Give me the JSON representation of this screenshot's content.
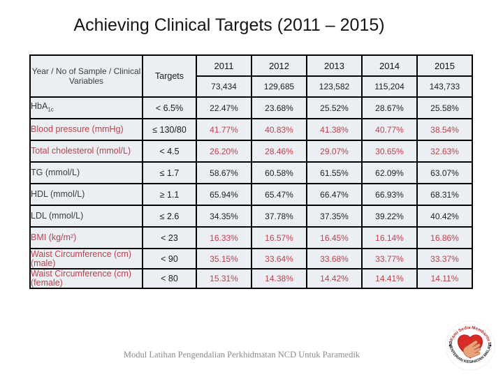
{
  "title": "Achieving Clinical Targets (2011 – 2015)",
  "table": {
    "header": {
      "row_label_line1": "Year / No of Sample / Clinical",
      "row_label_line2": "Variables",
      "targets_label": "Targets",
      "years": [
        "2011",
        "2012",
        "2013",
        "2014",
        "2015"
      ],
      "samples": [
        "73,434",
        "129,685",
        "123,582",
        "115,204",
        "143,733"
      ]
    },
    "rows": [
      {
        "label": "HbA",
        "label_sub": "1c",
        "target": "< 6.5%",
        "color": "black",
        "values": [
          "22.47%",
          "23.68%",
          "25.52%",
          "28.67%",
          "25.58%"
        ]
      },
      {
        "label": "Blood pressure (mmHg)",
        "target": "≤ 130/80",
        "color": "red",
        "values": [
          "41.77%",
          "40.83%",
          "41.38%",
          "40.77%",
          "38.54%"
        ]
      },
      {
        "label": "Total cholesterol (mmol/L)",
        "target": "< 4.5",
        "color": "red",
        "values": [
          "26.20%",
          "28.46%",
          "29.07%",
          "30.65%",
          "32.63%"
        ]
      },
      {
        "label": "TG (mmol/L)",
        "target": "≤ 1.7",
        "color": "black",
        "values": [
          "58.67%",
          "60.58%",
          "61.55%",
          "62.09%",
          "63.07%"
        ]
      },
      {
        "label": "HDL (mmol/L)",
        "target": "≥ 1.1",
        "color": "black",
        "values": [
          "65.94%",
          "65.47%",
          "66.47%",
          "66.93%",
          "68.31%"
        ]
      },
      {
        "label": "LDL (mmol/L)",
        "target": "≤ 2.6",
        "color": "black",
        "values": [
          "34.35%",
          "37.78%",
          "37.35%",
          "39.22%",
          "40.42%"
        ]
      },
      {
        "label": "BMI (kg/m²)",
        "target": "< 23",
        "color": "red",
        "values": [
          "16.33%",
          "16.57%",
          "16.45%",
          "16.14%",
          "16.86%"
        ]
      },
      {
        "label": "Waist Circumference (cm)",
        "label2": "(male)",
        "target": "< 90",
        "color": "red",
        "height": "short",
        "values": [
          "35.15%",
          "33.64%",
          "33.68%",
          "33.77%",
          "33.37%"
        ]
      },
      {
        "label": "Waist Circumference (cm)",
        "label2": "(female)",
        "target": "< 80",
        "color": "red",
        "height": "shorter",
        "values": [
          "15.31%",
          "14.38%",
          "14.42%",
          "14.41%",
          "14.11%"
        ]
      }
    ]
  },
  "footer": "Modul Latihan Pengendalian Perkhidmatan NCD Untuk Paramedik",
  "logo": {
    "arc_top": "Kami Sedia Membantu",
    "arc_bottom": "KEMENTERIAN KESIHATAN MALAYSIA"
  },
  "colors": {
    "accent_red": "#c0404a",
    "cell_bg": "#ebeff4",
    "targets_bg": "#dbd3b4",
    "border": "#000000",
    "heart_red": "#d92b27",
    "hand_tan": "#e9a178"
  }
}
